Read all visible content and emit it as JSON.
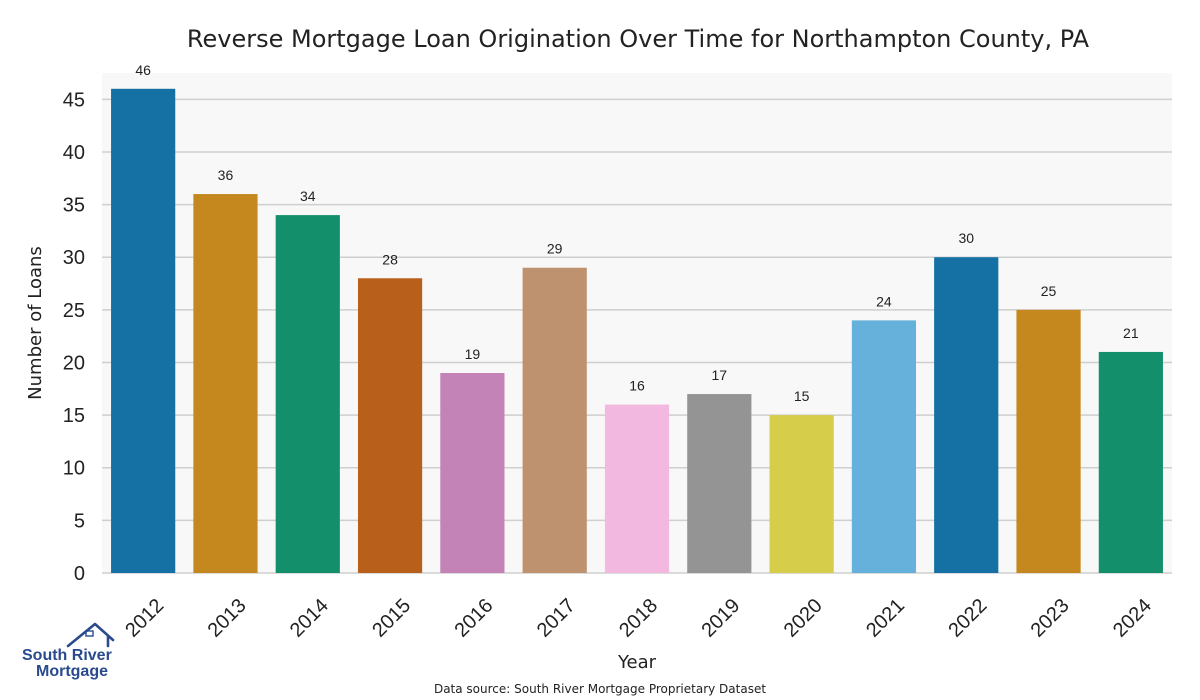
{
  "chart_data": {
    "type": "bar",
    "title": "Reverse Mortgage Loan Origination Over Time for Northampton County, PA",
    "xlabel": "Year",
    "ylabel": "Number of Loans",
    "categories": [
      "2012",
      "2013",
      "2014",
      "2015",
      "2016",
      "2017",
      "2018",
      "2019",
      "2020",
      "2021",
      "2022",
      "2023",
      "2024"
    ],
    "values": [
      46,
      36,
      34,
      28,
      19,
      29,
      16,
      17,
      15,
      24,
      30,
      25,
      21
    ],
    "colors": [
      "#1570a3",
      "#c4881e",
      "#148f6b",
      "#b85f1c",
      "#c383b7",
      "#be926f",
      "#f2b8df",
      "#949494",
      "#d6cd4b",
      "#66b1db",
      "#1570a3",
      "#c4881e",
      "#148f6b"
    ],
    "ylim": [
      0,
      47.5
    ],
    "yticks": [
      0,
      5,
      10,
      15,
      20,
      25,
      30,
      35,
      40,
      45
    ],
    "grid": true,
    "data_labels": true
  },
  "footer": {
    "source": "Data source: South River Mortgage Proprietary Dataset"
  },
  "logo": {
    "line1": "South River",
    "line2": "Mortgage",
    "color": "#2a4a8e"
  }
}
